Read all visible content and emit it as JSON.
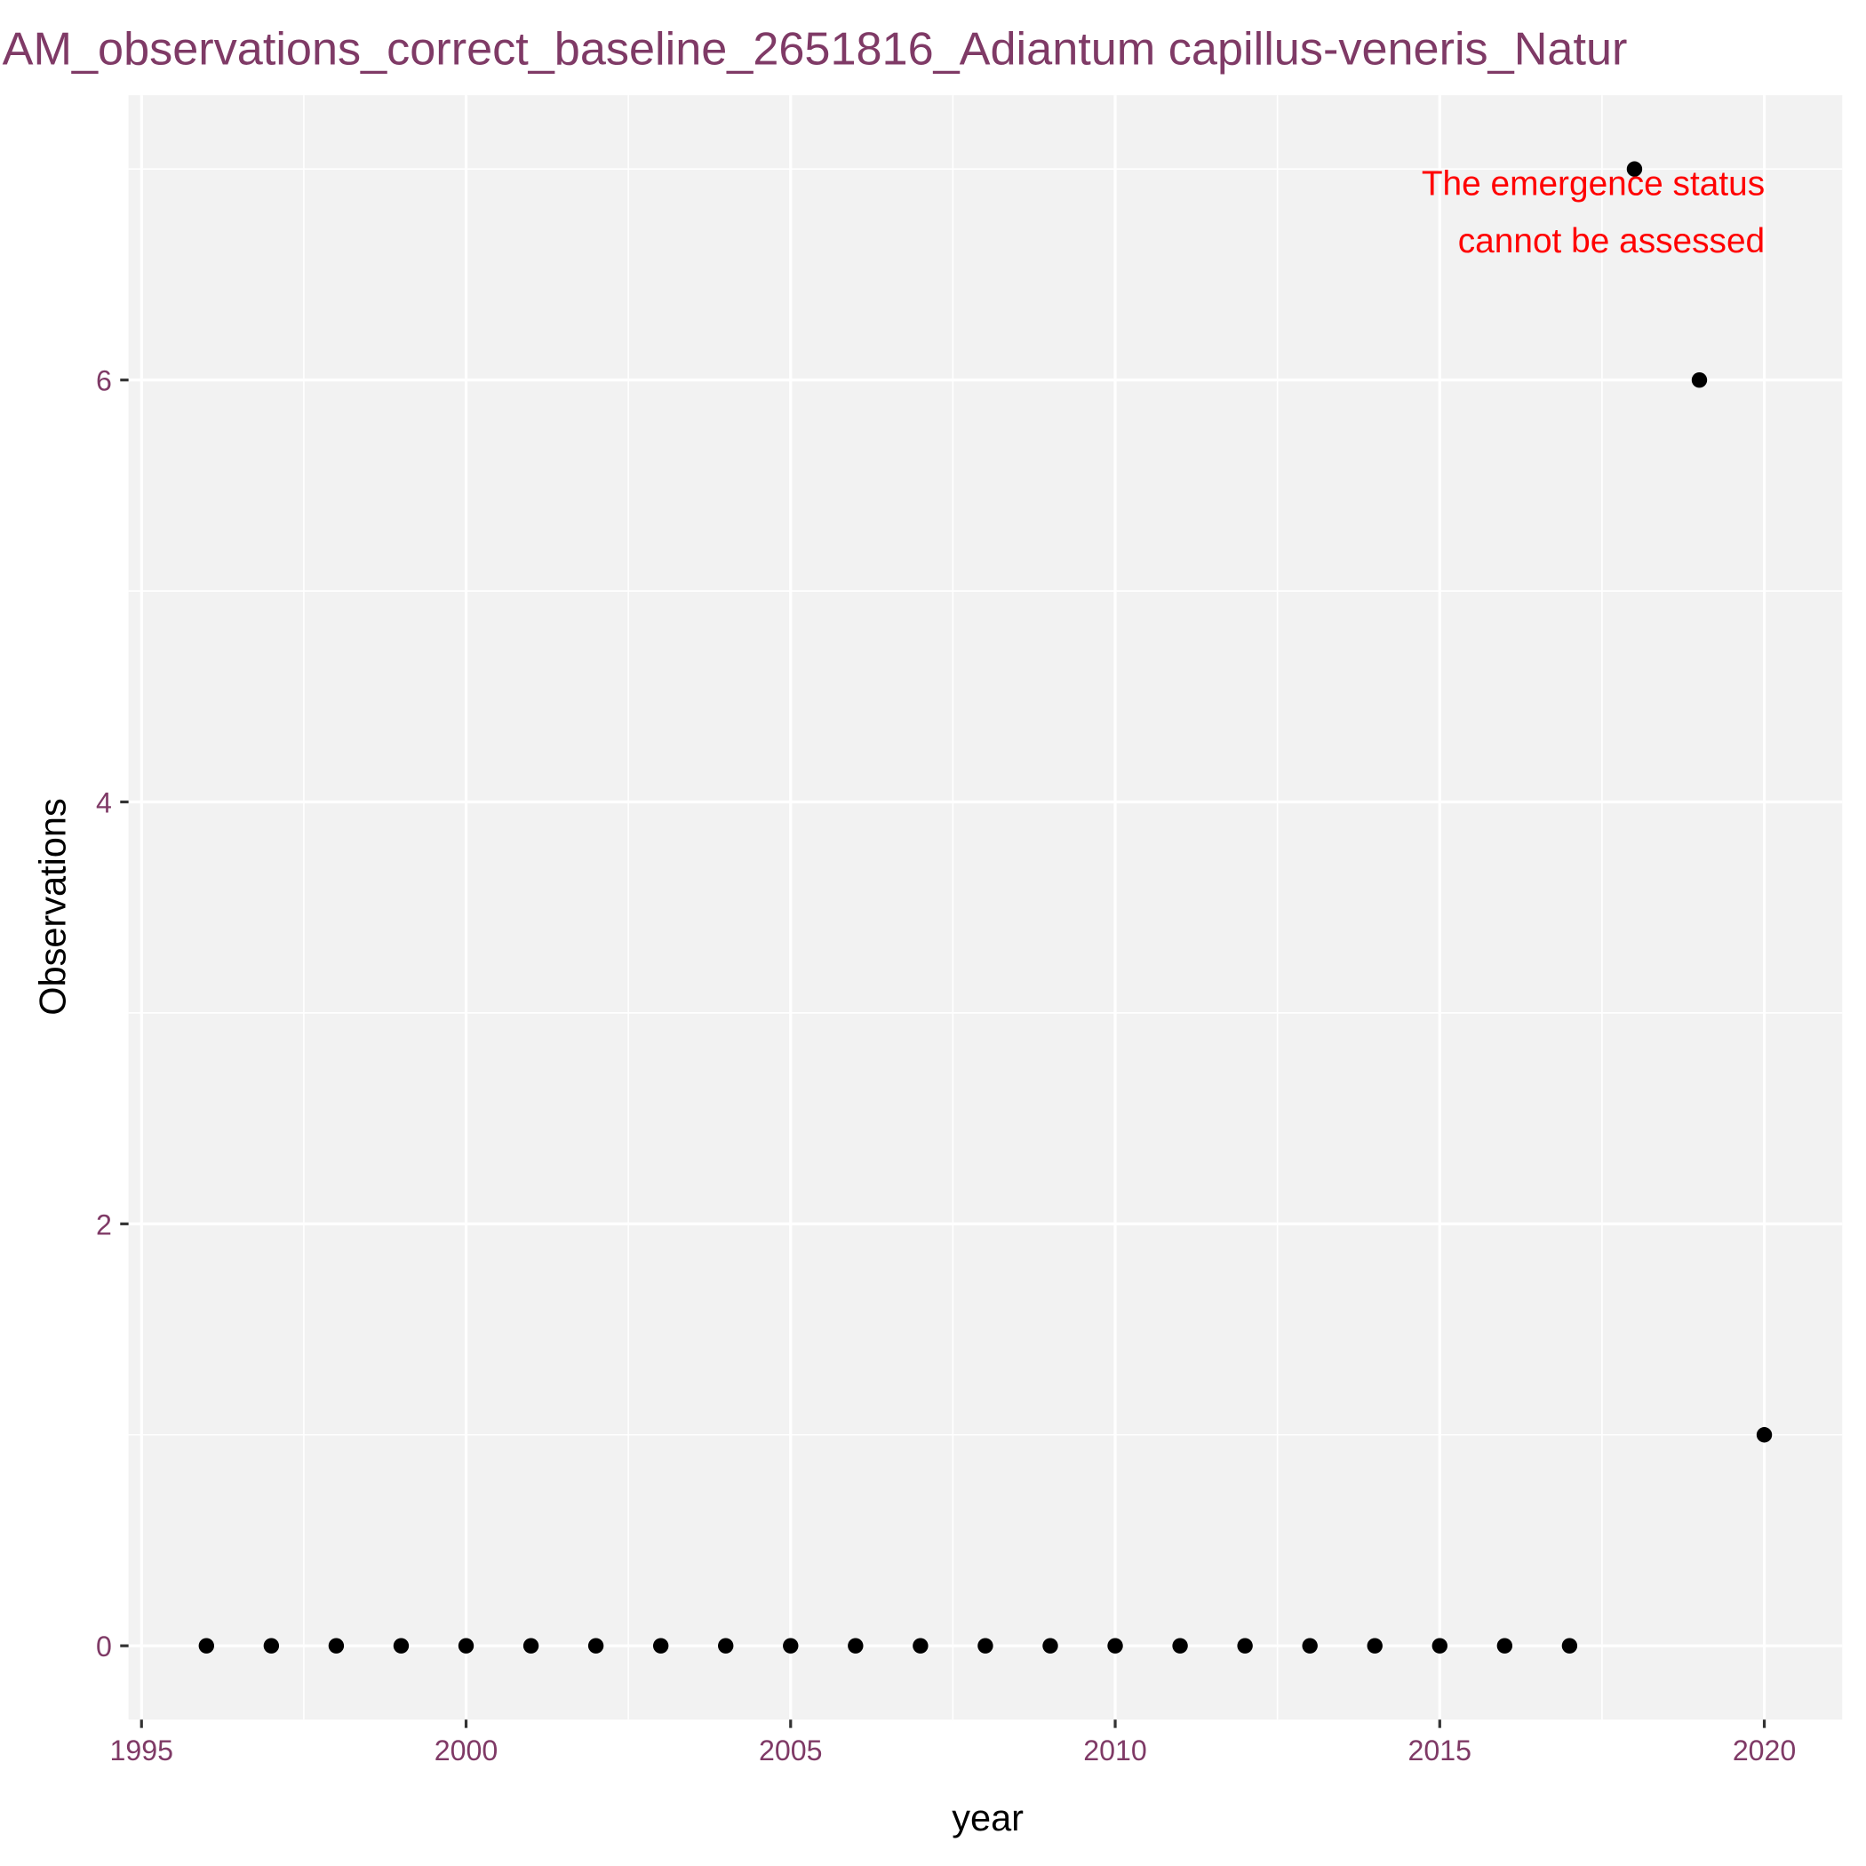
{
  "chart_data": {
    "type": "scatter",
    "title": "AM_observations_correct_baseline_2651816_Adiantum capillus-veneris_Natur",
    "x_label": "year",
    "y_label": "Observations",
    "annotation": [
      "The emergence status",
      "cannot be assessed"
    ],
    "annotation_color": "#ff0000",
    "x": [
      1996,
      1997,
      1998,
      1999,
      2000,
      2001,
      2002,
      2003,
      2004,
      2005,
      2006,
      2007,
      2008,
      2009,
      2010,
      2011,
      2012,
      2013,
      2014,
      2015,
      2016,
      2017,
      2018,
      2019,
      2020
    ],
    "values": [
      0,
      0,
      0,
      0,
      0,
      0,
      0,
      0,
      0,
      0,
      0,
      0,
      0,
      0,
      0,
      0,
      0,
      0,
      0,
      0,
      0,
      0,
      7,
      6,
      1
    ],
    "color": "#000000",
    "xlim": [
      1994.8,
      2021.2
    ],
    "ylim": [
      -0.35,
      7.35
    ],
    "xticks": [
      1995,
      2000,
      2005,
      2010,
      2015,
      2020
    ],
    "yticks": [
      0,
      2,
      4,
      6
    ],
    "grid": true
  }
}
